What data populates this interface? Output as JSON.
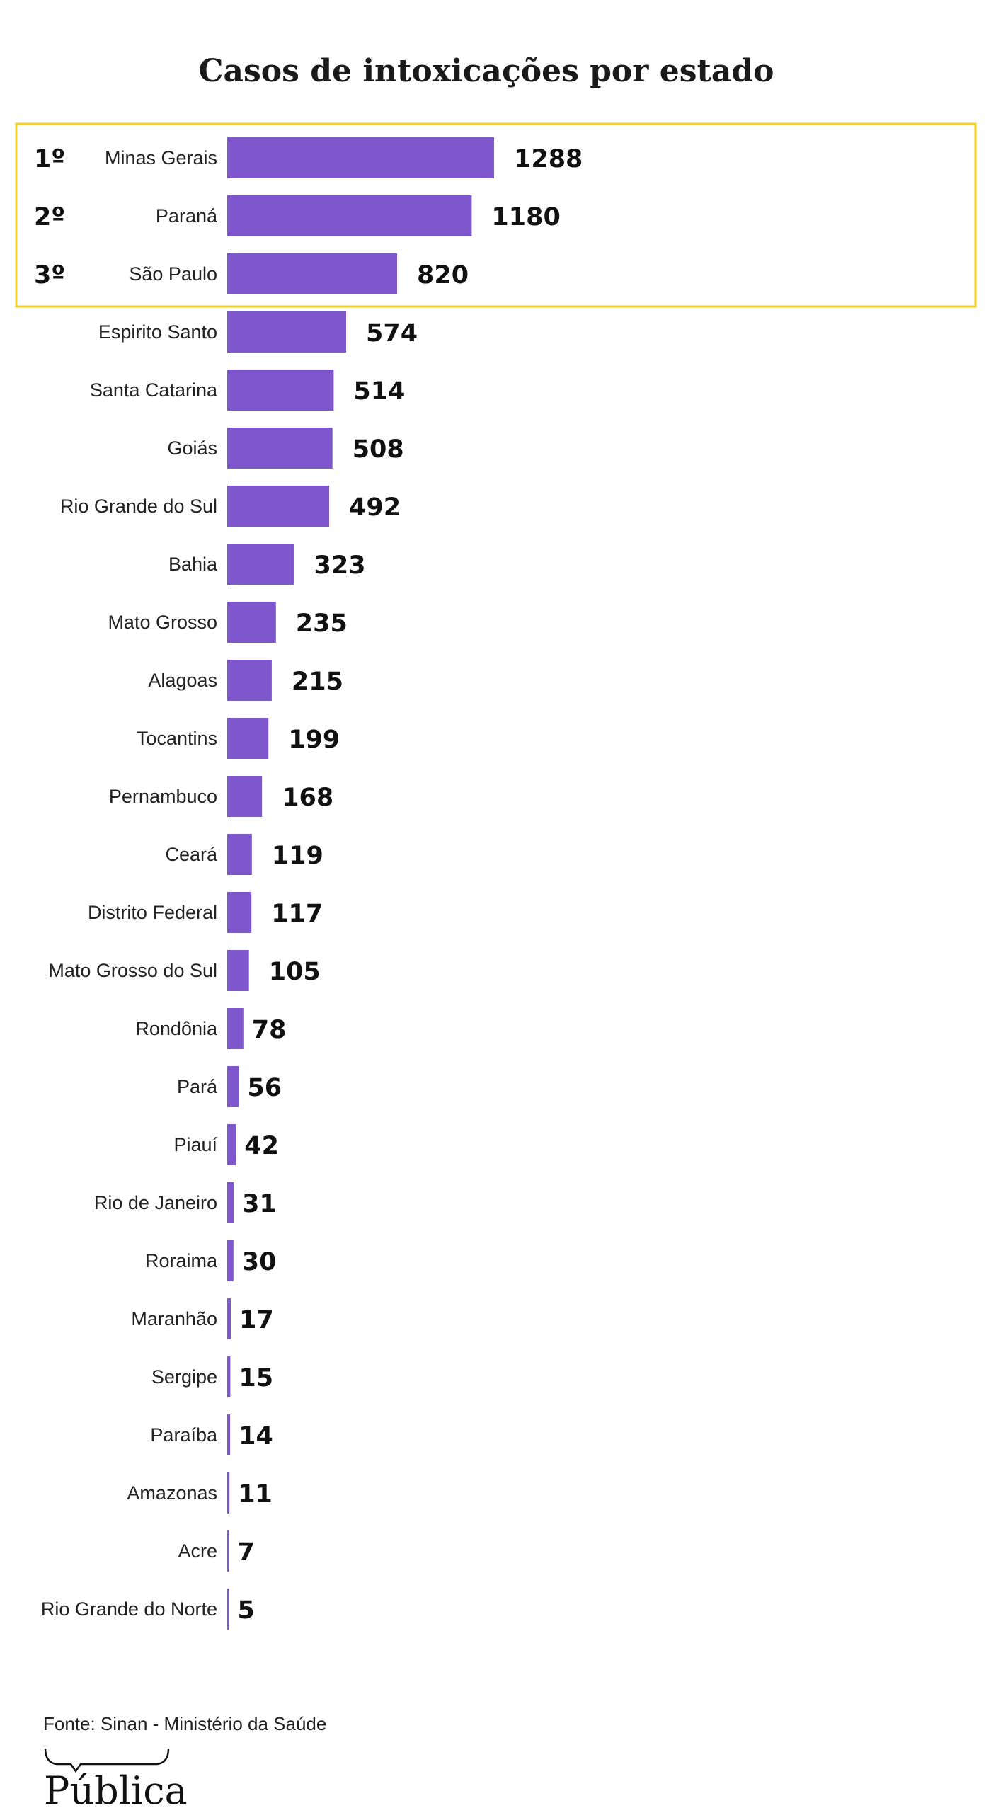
{
  "chart_data": {
    "type": "bar",
    "orientation": "horizontal",
    "title": "Casos de intoxicações por estado",
    "categories": [
      "Minas Gerais",
      "Paraná",
      "São Paulo",
      "Espirito Santo",
      "Santa Catarina",
      "Goiás",
      "Rio Grande do Sul",
      "Bahia",
      "Mato Grosso",
      "Alagoas",
      "Tocantins",
      "Pernambuco",
      "Ceará",
      "Distrito Federal",
      "Mato Grosso do Sul",
      "Rondônia",
      "Pará",
      "Piauí",
      "Rio de Janeiro",
      "Roraima",
      "Maranhão",
      "Sergipe",
      "Paraíba",
      "Amazonas",
      "Acre",
      "Rio Grande do Norte"
    ],
    "values": [
      1288,
      1180,
      820,
      574,
      514,
      508,
      492,
      323,
      235,
      215,
      199,
      168,
      119,
      117,
      105,
      78,
      56,
      42,
      31,
      30,
      17,
      15,
      14,
      11,
      7,
      5
    ],
    "value_labels": [
      "1288",
      "1180",
      "820",
      "574",
      "514",
      "508",
      "492",
      "323",
      "235",
      "215",
      "199",
      "168",
      "119",
      "117",
      "105",
      "78",
      "56",
      "42",
      "31",
      "30",
      "17",
      "15",
      "14",
      "11",
      "7",
      "5"
    ],
    "ranks": [
      "1º",
      "2º",
      "3º"
    ],
    "grid": false,
    "colors": {
      "bar": "#7e57cc",
      "highlight_border": "#f3d227"
    }
  },
  "source": "Fonte: Sinan - Ministério da Saúde",
  "logo": "Pública"
}
